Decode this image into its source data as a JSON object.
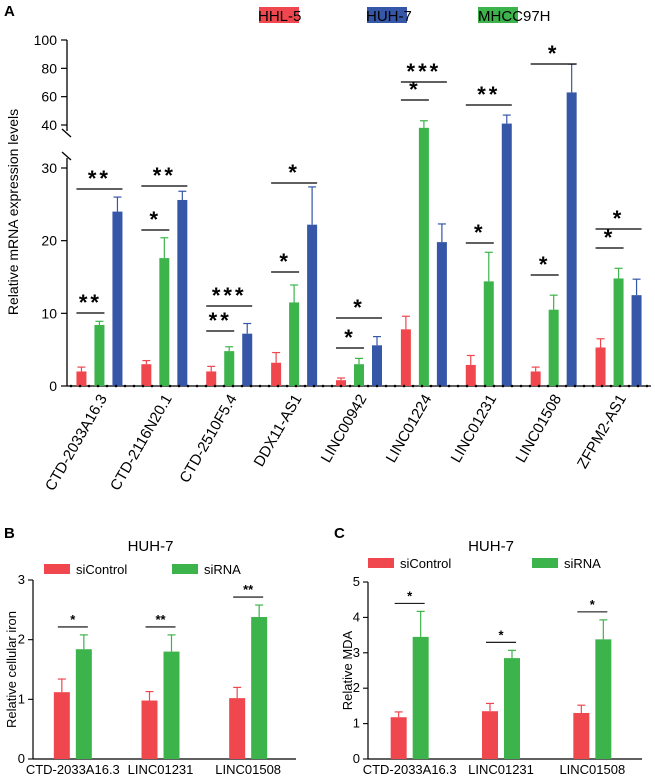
{
  "panels": {
    "a": "A",
    "b": "B",
    "c": "C"
  },
  "colors": {
    "red": "#f0474f",
    "blue": "#3656a8",
    "green": "#3cb44b"
  },
  "chart_data": [
    {
      "panel": "A",
      "type": "bar",
      "title": "",
      "xlabel": "",
      "ylabel": "Relative mRNA expression levels",
      "ylim_lower": [
        0,
        30
      ],
      "ylim_upper": [
        40,
        100
      ],
      "yticks_lower": [
        "0",
        "10",
        "20",
        "30"
      ],
      "yticks_upper": [
        "40",
        "60",
        "80",
        "100"
      ],
      "categories": [
        "CTD-2033A16.3",
        "CTD-2116N20.1",
        "CTD-2510F5.4",
        "DDX11-AS1",
        "LINC00942",
        "LINC01224",
        "LINC01231",
        "LINC01508",
        "ZFPM2-AS1"
      ],
      "legend": [
        "HHL-5",
        "HUH-7",
        "MHCC97H"
      ],
      "series": [
        {
          "name": "HHL-5",
          "color": "red",
          "values": [
            2.0,
            3.0,
            2.0,
            3.2,
            0.8,
            7.8,
            2.9,
            2.0,
            5.3
          ],
          "errors": [
            0.6,
            0.5,
            0.7,
            1.4,
            0.3,
            1.8,
            1.3,
            0.6,
            1.2
          ]
        },
        {
          "name": "MHCC97H",
          "color": "green",
          "values": [
            8.4,
            17.6,
            4.8,
            11.5,
            3.0,
            38.0,
            14.4,
            10.5,
            14.8
          ],
          "errors": [
            0.5,
            2.8,
            0.6,
            2.4,
            0.8,
            5.0,
            4.0,
            2.0,
            1.4
          ]
        },
        {
          "name": "HUH-7",
          "color": "blue",
          "values": [
            24.0,
            25.6,
            7.2,
            22.2,
            5.6,
            19.8,
            41.0,
            63.0,
            12.5
          ],
          "errors": [
            2.0,
            1.2,
            1.4,
            5.2,
            1.2,
            2.5,
            6.0,
            20.0,
            2.2
          ]
        }
      ],
      "significance": [
        {
          "text": "**",
          "from": "HHL-5",
          "to": "MHCC97H",
          "category": 0
        },
        {
          "text": "**",
          "from": "HHL-5",
          "to": "HUH-7",
          "category": 0
        },
        {
          "text": "*",
          "from": "HHL-5",
          "to": "MHCC97H",
          "category": 1
        },
        {
          "text": "**",
          "from": "HHL-5",
          "to": "HUH-7",
          "category": 1
        },
        {
          "text": "**",
          "from": "HHL-5",
          "to": "MHCC97H",
          "category": 2
        },
        {
          "text": "***",
          "from": "HHL-5",
          "to": "HUH-7",
          "category": 2
        },
        {
          "text": "*",
          "from": "HHL-5",
          "to": "MHCC97H",
          "category": 3
        },
        {
          "text": "*",
          "from": "HHL-5",
          "to": "HUH-7",
          "category": 3
        },
        {
          "text": "*",
          "from": "HHL-5",
          "to": "MHCC97H",
          "category": 4
        },
        {
          "text": "*",
          "from": "HHL-5",
          "to": "HUH-7",
          "category": 4
        },
        {
          "text": "*",
          "from": "HHL-5",
          "to": "MHCC97H",
          "category": 5
        },
        {
          "text": "***",
          "from": "HHL-5",
          "to": "HUH-7",
          "category": 5
        },
        {
          "text": "*",
          "from": "HHL-5",
          "to": "MHCC97H",
          "category": 6
        },
        {
          "text": "**",
          "from": "HHL-5",
          "to": "HUH-7",
          "category": 6
        },
        {
          "text": "*",
          "from": "HHL-5",
          "to": "MHCC97H",
          "category": 7
        },
        {
          "text": "*",
          "from": "HHL-5",
          "to": "HUH-7",
          "category": 7
        },
        {
          "text": "*",
          "from": "HHL-5",
          "to": "MHCC97H",
          "category": 8
        },
        {
          "text": "*",
          "from": "HHL-5",
          "to": "HUH-7",
          "category": 8
        }
      ]
    },
    {
      "panel": "B",
      "type": "bar",
      "title": "HUH-7",
      "xlabel": "",
      "ylabel": "Relative cellular iron",
      "ylim": [
        0,
        3
      ],
      "yticks": [
        "0",
        "1",
        "2",
        "3"
      ],
      "categories": [
        "CTD-2033A16.3",
        "LINC01231",
        "LINC01508"
      ],
      "legend": [
        "siControl",
        "siRNA"
      ],
      "series": [
        {
          "name": "siControl",
          "color": "red",
          "values": [
            1.12,
            0.98,
            1.02
          ],
          "errors": [
            0.22,
            0.15,
            0.18
          ]
        },
        {
          "name": "siRNA",
          "color": "green",
          "values": [
            1.84,
            1.8,
            2.38
          ],
          "errors": [
            0.24,
            0.28,
            0.2
          ]
        }
      ],
      "significance": [
        "*",
        "**",
        "**"
      ]
    },
    {
      "panel": "C",
      "type": "bar",
      "title": "HUH-7",
      "xlabel": "",
      "ylabel": "Relative MDA",
      "ylim": [
        0,
        5
      ],
      "yticks": [
        "0",
        "1",
        "2",
        "3",
        "4",
        "5"
      ],
      "categories": [
        "CTD-2033A16.3",
        "LINC01231",
        "LINC01508"
      ],
      "legend": [
        "siControl",
        "siRNA"
      ],
      "series": [
        {
          "name": "siControl",
          "color": "red",
          "values": [
            1.18,
            1.35,
            1.3
          ],
          "errors": [
            0.15,
            0.22,
            0.22
          ]
        },
        {
          "name": "siRNA",
          "color": "green",
          "values": [
            3.45,
            2.85,
            3.38
          ],
          "errors": [
            0.72,
            0.22,
            0.55
          ]
        }
      ],
      "significance": [
        "*",
        "*",
        "*"
      ]
    }
  ]
}
